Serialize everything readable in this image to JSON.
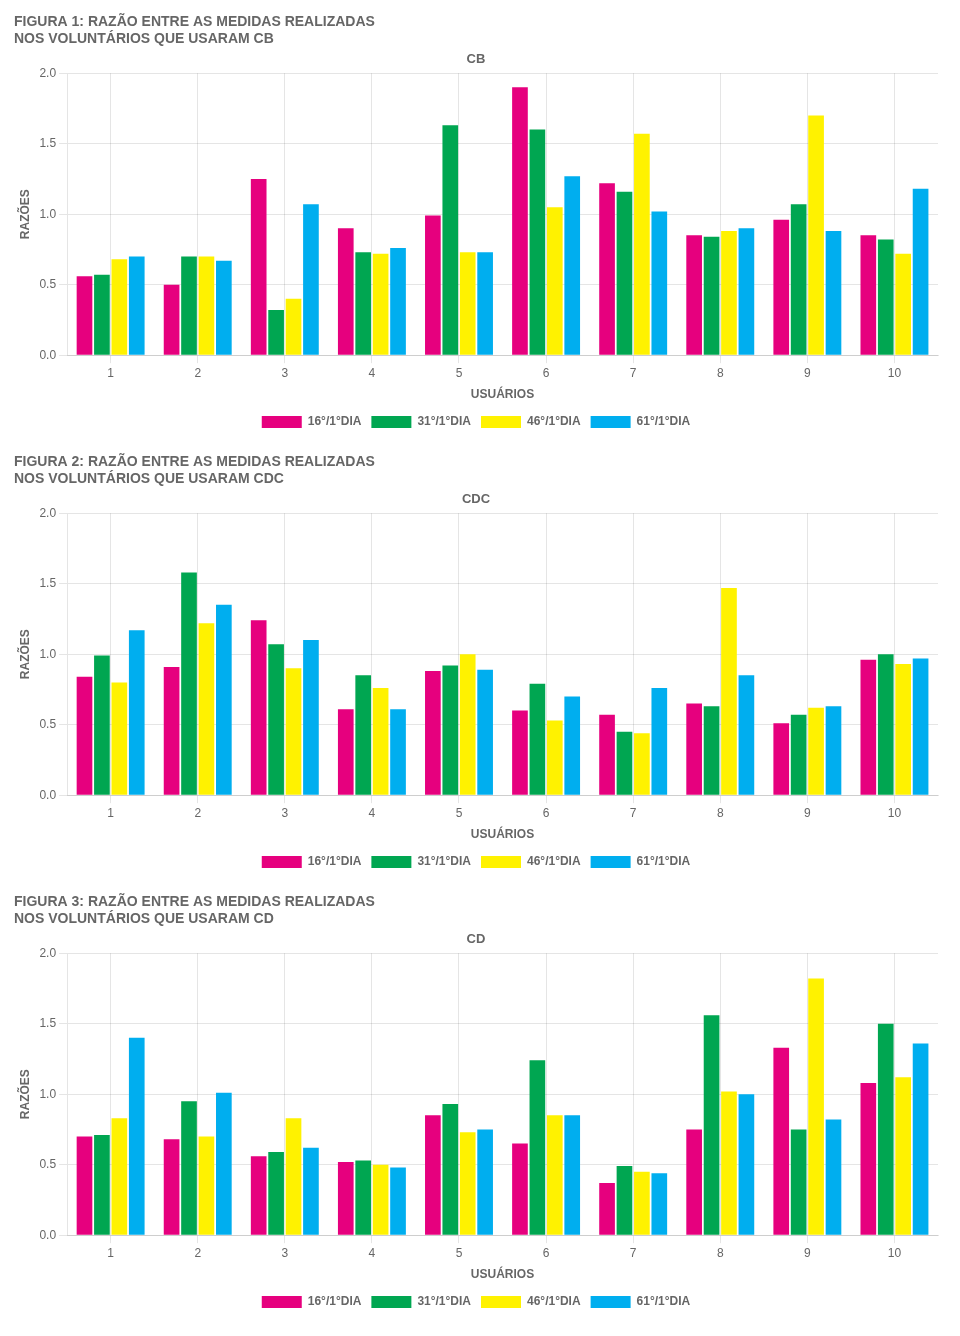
{
  "chart_data": [
    {
      "type": "bar",
      "title": [
        "FIGURA 1: RAZÃO ENTRE AS MEDIDAS REALIZADAS",
        "NOS VOLUNTÁRIOS QUE USARAM CB"
      ],
      "subtitle": "CB",
      "x_label": "USUÁRIOS",
      "y_label": "RAZÕES",
      "categories": [
        "1",
        "2",
        "3",
        "4",
        "5",
        "6",
        "7",
        "8",
        "9",
        "10"
      ],
      "series": [
        {
          "name": "16°/1°DIA",
          "color": "#E6007E",
          "values": [
            0.56,
            0.5,
            1.25,
            0.9,
            0.99,
            1.9,
            1.22,
            0.85,
            0.96,
            0.85
          ]
        },
        {
          "name": "31°/1°DIA",
          "color": "#00A651",
          "values": [
            0.57,
            0.7,
            0.32,
            0.73,
            1.63,
            1.6,
            1.16,
            0.84,
            1.07,
            0.82
          ]
        },
        {
          "name": "46°/1°DIA",
          "color": "#FFF200",
          "values": [
            0.68,
            0.7,
            0.4,
            0.72,
            0.73,
            1.05,
            1.57,
            0.88,
            1.7,
            0.72
          ]
        },
        {
          "name": "61°/1°DIA",
          "color": "#00AEEF",
          "values": [
            0.7,
            0.67,
            1.07,
            0.76,
            0.73,
            1.27,
            1.02,
            0.9,
            0.88,
            1.18
          ]
        }
      ],
      "ylim": [
        0.0,
        2.0
      ],
      "yticks": [
        {
          "value": 0.0,
          "label": "0.0"
        },
        0.5,
        {
          "value": 1.0,
          "label": "1.0"
        },
        1.5,
        {
          "value": 2.0,
          "label": "2.0"
        }
      ],
      "grid": true,
      "legend": "bottom"
    },
    {
      "type": "bar",
      "title": [
        "FIGURA 2: RAZÃO ENTRE AS MEDIDAS REALIZADAS",
        "NOS VOLUNTÁRIOS QUE USARAM CDC"
      ],
      "subtitle": "CDC",
      "x_label": "USUÁRIOS",
      "y_label": "RAZÕES",
      "categories": [
        "1",
        "2",
        "3",
        "4",
        "5",
        "6",
        "7",
        "8",
        "9",
        "10"
      ],
      "series": [
        {
          "name": "16°/1°DIA",
          "color": "#E6007E",
          "values": [
            0.84,
            0.91,
            1.24,
            0.61,
            0.88,
            0.6,
            0.57,
            0.65,
            0.51,
            0.96
          ]
        },
        {
          "name": "31°/1°DIA",
          "color": "#00A651",
          "values": [
            0.99,
            1.58,
            1.07,
            0.85,
            0.92,
            0.79,
            0.45,
            0.63,
            0.57,
            1.0
          ]
        },
        {
          "name": "46°/1°DIA",
          "color": "#FFF200",
          "values": [
            0.8,
            1.22,
            0.9,
            0.76,
            1.0,
            0.53,
            0.44,
            1.47,
            0.62,
            0.93
          ]
        },
        {
          "name": "61°/1°DIA",
          "color": "#00AEEF",
          "values": [
            1.17,
            1.35,
            1.1,
            0.61,
            0.89,
            0.7,
            0.76,
            0.85,
            0.63,
            0.97
          ]
        }
      ],
      "ylim": [
        0.0,
        2.0
      ],
      "yticks": [
        {
          "value": 0.0,
          "label": "0.0"
        },
        0.5,
        {
          "value": 1.0,
          "label": "1.0"
        },
        1.5,
        {
          "value": 2.0,
          "label": "2.0"
        }
      ],
      "grid": true,
      "legend": "bottom"
    },
    {
      "type": "bar",
      "title": [
        "FIGURA 3: RAZÃO ENTRE AS MEDIDAS REALIZADAS",
        "NOS VOLUNTÁRIOS QUE USARAM CD"
      ],
      "subtitle": "CD",
      "x_label": "USUÁRIOS",
      "y_label": "RAZÕES",
      "categories": [
        "1",
        "2",
        "3",
        "4",
        "5",
        "6",
        "7",
        "8",
        "9",
        "10"
      ],
      "series": [
        {
          "name": "16°/1°DIA",
          "color": "#E6007E",
          "values": [
            0.7,
            0.68,
            0.56,
            0.52,
            0.85,
            0.65,
            0.37,
            0.75,
            1.33,
            1.08
          ]
        },
        {
          "name": "31°/1°DIA",
          "color": "#00A651",
          "values": [
            0.71,
            0.95,
            0.59,
            0.53,
            0.93,
            1.24,
            0.49,
            1.56,
            0.75,
            1.5
          ]
        },
        {
          "name": "46°/1°DIA",
          "color": "#FFF200",
          "values": [
            0.83,
            0.7,
            0.83,
            0.5,
            0.73,
            0.85,
            0.45,
            1.02,
            1.82,
            1.12
          ]
        },
        {
          "name": "61°/1°DIA",
          "color": "#00AEEF",
          "values": [
            1.4,
            1.01,
            0.62,
            0.48,
            0.75,
            0.85,
            0.44,
            1.0,
            0.82,
            1.36
          ]
        }
      ],
      "ylim": [
        0.0,
        2.0
      ],
      "yticks": [
        {
          "value": 0.0,
          "label": "0.0"
        },
        0.5,
        {
          "value": 1.0,
          "label": "1.0"
        },
        1.5,
        {
          "value": 2.0,
          "label": "2.0"
        }
      ],
      "grid": true,
      "legend": "bottom"
    }
  ]
}
